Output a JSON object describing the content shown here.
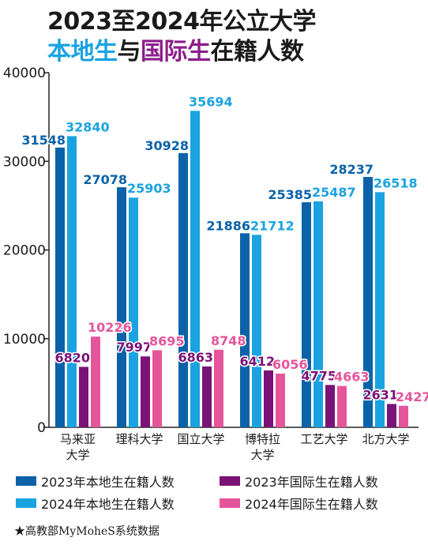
{
  "title": {
    "line1": "2023至2024年公立大学",
    "line2_local": "本地生",
    "line2_mid": "与",
    "line2_intl": "国际生",
    "line2_end": "在籍人数"
  },
  "source_note": "★高教部MyMoheS系统数据",
  "colors": {
    "local_2023": "#0b62a8",
    "local_2024": "#1aa3e0",
    "intl_2023": "#7a1277",
    "intl_2024": "#e5559a"
  },
  "chart_data": {
    "type": "bar",
    "title": "2023至2024年公立大学本地生与国际生在籍人数",
    "xlabel": "",
    "ylabel": "",
    "ylim": [
      0,
      40000
    ],
    "yticks": [
      "0",
      "10000",
      "20000",
      "30000",
      "40000"
    ],
    "grid": false,
    "legend_position": "bottom",
    "categories": [
      [
        "马来亚",
        "大学"
      ],
      [
        "理科大学"
      ],
      [
        "国立大学"
      ],
      [
        "博特拉",
        "大学"
      ],
      [
        "工艺大学"
      ],
      [
        "北方大学"
      ]
    ],
    "series": [
      {
        "name": "2023年本地生在籍人数",
        "color": "#0b62a8",
        "values": [
          31548,
          27078,
          30928,
          21886,
          25385,
          28237
        ]
      },
      {
        "name": "2024年本地生在籍人数",
        "color": "#1aa3e0",
        "values": [
          32840,
          25903,
          35694,
          21712,
          25487,
          26518
        ]
      },
      {
        "name": "2023年国际生在籍人数",
        "color": "#7a1277",
        "values": [
          6820,
          7997,
          6863,
          6412,
          4775,
          2631
        ]
      },
      {
        "name": "2024年国际生在籍人数",
        "color": "#e5559a",
        "values": [
          10226,
          8695,
          8748,
          6056,
          4663,
          2427
        ]
      }
    ],
    "legend": [
      {
        "label": "2023年本地生在籍人数",
        "color": "#0b62a8"
      },
      {
        "label": "2023年国际生在籍人数",
        "color": "#7a1277"
      },
      {
        "label": "2024年本地生在籍人数",
        "color": "#1aa3e0"
      },
      {
        "label": "2024年国际生在籍人数",
        "color": "#e5559a"
      }
    ]
  }
}
